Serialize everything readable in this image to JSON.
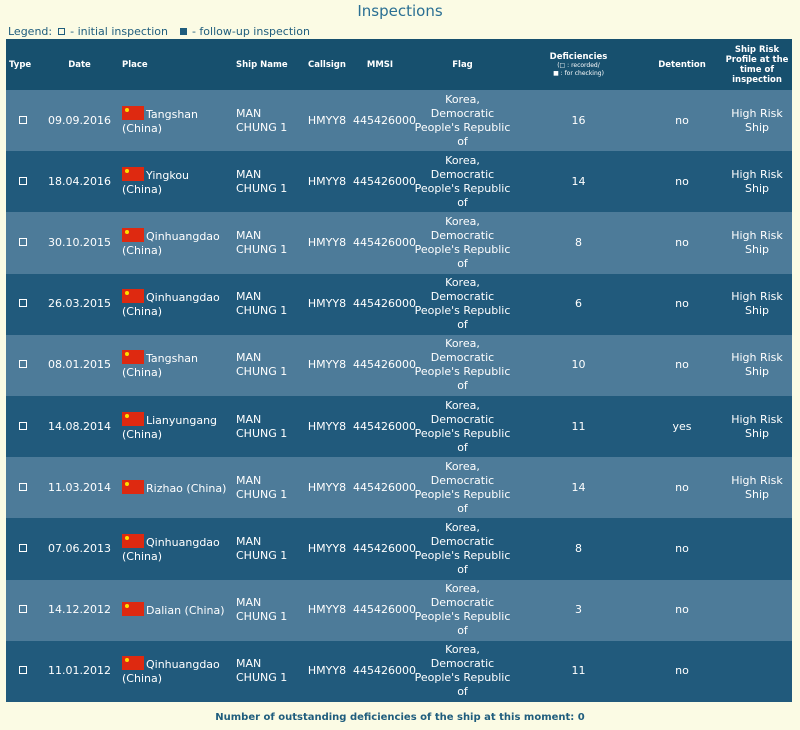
{
  "page": {
    "title": "Inspections",
    "legend": {
      "label": "Legend:",
      "initial": "- initial inspection",
      "followup": "- follow-up inspection"
    },
    "footer": "Number of outstanding deficiencies of the ship at this moment: 0"
  },
  "columns": {
    "type": "Type",
    "date": "Date",
    "place": "Place",
    "ship_name": "Ship Name",
    "callsign": "Callsign",
    "mmsi": "MMSI",
    "flag": "Flag",
    "deficiencies": "Deficiencies",
    "deficiencies_note1": "(□ : recorded/",
    "deficiencies_note2": "■ : for checking)",
    "detention": "Detention",
    "risk": "Ship Risk Profile at the time of inspection"
  },
  "rows": [
    {
      "date": "09.09.2016",
      "place": "Tangshan (China)",
      "ship_name": "MAN CHUNG 1",
      "callsign": "HMYY8",
      "mmsi": "445426000",
      "flag": "Korea, Democratic People's Republic of",
      "deficiencies": "16",
      "detention": "no",
      "risk": "High Risk Ship"
    },
    {
      "date": "18.04.2016",
      "place": "Yingkou (China)",
      "ship_name": "MAN CHUNG 1",
      "callsign": "HMYY8",
      "mmsi": "445426000",
      "flag": "Korea, Democratic People's Republic of",
      "deficiencies": "14",
      "detention": "no",
      "risk": "High Risk Ship"
    },
    {
      "date": "30.10.2015",
      "place": "Qinhuangdao (China)",
      "ship_name": "MAN CHUNG 1",
      "callsign": "HMYY8",
      "mmsi": "445426000",
      "flag": "Korea, Democratic People's Republic of",
      "deficiencies": "8",
      "detention": "no",
      "risk": "High Risk Ship"
    },
    {
      "date": "26.03.2015",
      "place": "Qinhuangdao (China)",
      "ship_name": "MAN CHUNG 1",
      "callsign": "HMYY8",
      "mmsi": "445426000",
      "flag": "Korea, Democratic People's Republic of",
      "deficiencies": "6",
      "detention": "no",
      "risk": "High Risk Ship"
    },
    {
      "date": "08.01.2015",
      "place": "Tangshan (China)",
      "ship_name": "MAN CHUNG 1",
      "callsign": "HMYY8",
      "mmsi": "445426000",
      "flag": "Korea, Democratic People's Republic of",
      "deficiencies": "10",
      "detention": "no",
      "risk": "High Risk Ship"
    },
    {
      "date": "14.08.2014",
      "place": "Lianyungang (China)",
      "ship_name": "MAN CHUNG 1",
      "callsign": "HMYY8",
      "mmsi": "445426000",
      "flag": "Korea, Democratic People's Republic of",
      "deficiencies": "11",
      "detention": "yes",
      "risk": "High Risk Ship"
    },
    {
      "date": "11.03.2014",
      "place": "Rizhao (China)",
      "ship_name": "MAN CHUNG 1",
      "callsign": "HMYY8",
      "mmsi": "445426000",
      "flag": "Korea, Democratic People's Republic of",
      "deficiencies": "14",
      "detention": "no",
      "risk": "High Risk Ship"
    },
    {
      "date": "07.06.2013",
      "place": "Qinhuangdao (China)",
      "ship_name": "MAN CHUNG 1",
      "callsign": "HMYY8",
      "mmsi": "445426000",
      "flag": "Korea, Democratic People's Republic of",
      "deficiencies": "8",
      "detention": "no",
      "risk": ""
    },
    {
      "date": "14.12.2012",
      "place": "Dalian (China)",
      "ship_name": "MAN CHUNG 1",
      "callsign": "HMYY8",
      "mmsi": "445426000",
      "flag": "Korea, Democratic People's Republic of",
      "deficiencies": "3",
      "detention": "no",
      "risk": ""
    },
    {
      "date": "11.01.2012",
      "place": "Qinhuangdao (China)",
      "ship_name": "MAN CHUNG 1",
      "callsign": "HMYY8",
      "mmsi": "445426000",
      "flag": "Korea, Democratic People's Republic of",
      "deficiencies": "11",
      "detention": "no",
      "risk": ""
    }
  ]
}
